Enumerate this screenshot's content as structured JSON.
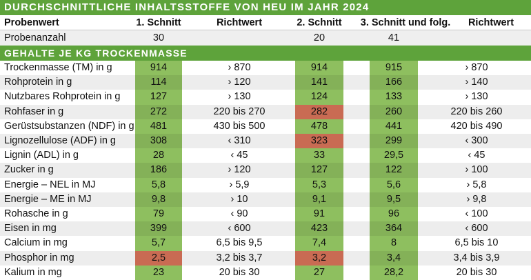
{
  "title": "DURCHSCHNITTLICHE INHALTSSTOFFE VON HEU IM JAHR 2024",
  "section_title": "GEHALTE JE KG TROCKENMASSE",
  "columns": {
    "label": "Probenwert",
    "cut1": "1. Schnitt",
    "ref1": "Richtwert",
    "cut2": "2. Schnitt",
    "cut3": "3. Schnitt und folg.",
    "ref3": "Richtwert"
  },
  "sample_count": {
    "label": "Probenanzahl",
    "cut1": "30",
    "cut2": "20",
    "cut3": "41"
  },
  "colors": {
    "header_green": "#5ea33b",
    "ok_green": "#8ebf5f",
    "deviation_red": "#d9745a"
  },
  "rows": [
    {
      "label": "Trockenmasse (TM) in g",
      "cut1": "914",
      "ref1": "› 870",
      "cut2": "914",
      "cut3": "915",
      "ref3": "› 870"
    },
    {
      "label": "Rohprotein in g",
      "cut1": "114",
      "ref1": "› 120",
      "cut2": "141",
      "cut3": "166",
      "ref3": "› 140"
    },
    {
      "label": "Nutzbares Rohprotein in g",
      "cut1": "127",
      "ref1": "› 130",
      "cut2": "124",
      "cut3": "133",
      "ref3": "› 130"
    },
    {
      "label": "Rohfaser in g",
      "cut1": "272",
      "ref1": "220 bis 270",
      "cut2": "282",
      "cut3": "260",
      "ref3": "220 bis 260"
    },
    {
      "label": "Gerüstsubstanzen (NDF) in g",
      "cut1": "481",
      "ref1": "430 bis 500",
      "cut2": "478",
      "cut3": "441",
      "ref3": "420 bis 490"
    },
    {
      "label": "Lignozellulose (ADF) in g",
      "cut1": "308",
      "ref1": "‹ 310",
      "cut2": "323",
      "cut3": "299",
      "ref3": "‹ 300"
    },
    {
      "label": "Lignin (ADL) in g",
      "cut1": "28",
      "ref1": "‹ 45",
      "cut2": "33",
      "cut3": "29,5",
      "ref3": "‹ 45"
    },
    {
      "label": "Zucker in g",
      "cut1": "186",
      "ref1": "› 120",
      "cut2": "127",
      "cut3": "122",
      "ref3": "› 100"
    },
    {
      "label": "Energie – NEL in MJ",
      "cut1": "5,8",
      "ref1": "› 5,9",
      "cut2": "5,3",
      "cut3": "5,6",
      "ref3": "› 5,8"
    },
    {
      "label": "Energie – ME in MJ",
      "cut1": "9,8",
      "ref1": "› 10",
      "cut2": "9,1",
      "cut3": "9,5",
      "ref3": "› 9,8"
    },
    {
      "label": "Rohasche in g",
      "cut1": "79",
      "ref1": "‹ 90",
      "cut2": "91",
      "cut3": "96",
      "ref3": "‹ 100"
    },
    {
      "label": "Eisen in mg",
      "cut1": "399",
      "ref1": "‹ 600",
      "cut2": "423",
      "cut3": "364",
      "ref3": "‹ 600"
    },
    {
      "label": "Calcium in mg",
      "cut1": "5,7",
      "ref1": "6,5 bis 9,5",
      "cut2": "7,4",
      "cut3": "8",
      "ref3": "6,5 bis 10"
    },
    {
      "label": "Phosphor in mg",
      "cut1": "2,5",
      "ref1": "3,2 bis 3,7",
      "cut2": "3,2",
      "cut3": "3,4",
      "ref3": "3,4 bis 3,9"
    },
    {
      "label": "Kalium in mg",
      "cut1": "23",
      "ref1": "20 bis 30",
      "cut2": "27",
      "cut3": "28,2",
      "ref3": "20 bis 30"
    }
  ]
}
